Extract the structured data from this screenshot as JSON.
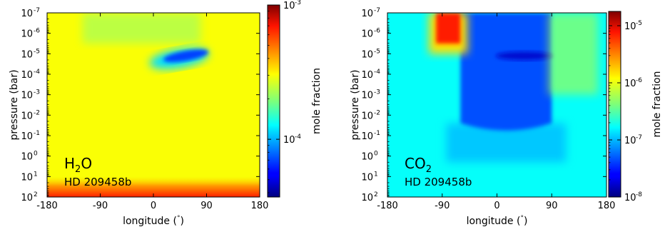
{
  "chart_data": [
    {
      "type": "heatmap",
      "species": {
        "base": "H",
        "sub": "2",
        "tail": "O"
      },
      "planet": "HD 209458b",
      "xlabel": "longitude (°)",
      "xlabel_parts": {
        "pre": "longitude (",
        "deg": "°",
        "post": ")"
      },
      "ylabel": "pressure (bar)",
      "colorbar_label": "mole fraction",
      "xlim": [
        -180,
        180
      ],
      "ylim": [
        1e-07,
        100.0
      ],
      "yscale": "log",
      "x_ticks": [
        {
          "value": -180,
          "label": "-180"
        },
        {
          "value": -90,
          "label": "-90"
        },
        {
          "value": 0,
          "label": "0"
        },
        {
          "value": 90,
          "label": "90"
        },
        {
          "value": 180,
          "label": "180"
        }
      ],
      "y_ticks": [
        {
          "value": -7,
          "label": "-7"
        },
        {
          "value": -6,
          "label": "-6"
        },
        {
          "value": -5,
          "label": "-5"
        },
        {
          "value": -4,
          "label": "-4"
        },
        {
          "value": -3,
          "label": "-3"
        },
        {
          "value": -2,
          "label": "-2"
        },
        {
          "value": -1,
          "label": "-1"
        },
        {
          "value": 0,
          "label": "0"
        },
        {
          "value": 1,
          "label": "1"
        },
        {
          "value": 2,
          "label": "2"
        }
      ],
      "colorbar": {
        "scale": "log",
        "range_exp": [
          -4.43,
          -3
        ],
        "ticks": [
          {
            "value": -3,
            "label": "-3"
          },
          {
            "value": -4,
            "label": "-4"
          }
        ]
      },
      "background_level": 0.62,
      "features": [
        {
          "kind": "deep-gradient",
          "p_range": [
            10,
            100
          ],
          "level_range": [
            0.62,
            0.95
          ]
        },
        {
          "kind": "depletion-band",
          "lon": 55,
          "log_p": -4.9,
          "level": 0.05
        },
        {
          "kind": "slight-depletion",
          "lon_range": [
            -120,
            80
          ],
          "log_p_range": [
            -7,
            -5.5
          ],
          "level": 0.5
        }
      ]
    },
    {
      "type": "heatmap",
      "species": {
        "base": "CO",
        "sub": "2",
        "tail": ""
      },
      "planet": "HD 209458b",
      "xlabel": "longitude (°)",
      "xlabel_parts": {
        "pre": "longitude (",
        "deg": "°",
        "post": ")"
      },
      "ylabel": "pressure (bar)",
      "colorbar_label": "mole fraction",
      "xlim": [
        -180,
        180
      ],
      "ylim": [
        1e-07,
        100.0
      ],
      "yscale": "log",
      "x_ticks": [
        {
          "value": -180,
          "label": "-180"
        },
        {
          "value": -90,
          "label": "-90"
        },
        {
          "value": 0,
          "label": "0"
        },
        {
          "value": 90,
          "label": "90"
        },
        {
          "value": 180,
          "label": "180"
        }
      ],
      "y_ticks": [
        {
          "value": -7,
          "label": "-7"
        },
        {
          "value": -6,
          "label": "-6"
        },
        {
          "value": -5,
          "label": "-5"
        },
        {
          "value": -4,
          "label": "-4"
        },
        {
          "value": -3,
          "label": "-3"
        },
        {
          "value": -2,
          "label": "-2"
        },
        {
          "value": -1,
          "label": "-1"
        },
        {
          "value": 0,
          "label": "0"
        },
        {
          "value": 1,
          "label": "1"
        },
        {
          "value": 2,
          "label": "2"
        }
      ],
      "colorbar": {
        "scale": "log",
        "range_exp": [
          -8,
          -4.75
        ],
        "ticks": [
          {
            "value": -5,
            "label": "-5"
          },
          {
            "value": -6,
            "label": "-6"
          },
          {
            "value": -7,
            "label": "-7"
          },
          {
            "value": -8,
            "label": "-8"
          }
        ]
      },
      "background_level": 0.38,
      "features": [
        {
          "kind": "dayside-depletion",
          "lon_range": [
            -60,
            90
          ],
          "level": 0.1
        },
        {
          "kind": "nightside-enhancement",
          "lon_range": [
            -100,
            -60
          ],
          "log_p_range": [
            -7,
            -5.5
          ],
          "level": 0.85
        }
      ]
    }
  ]
}
